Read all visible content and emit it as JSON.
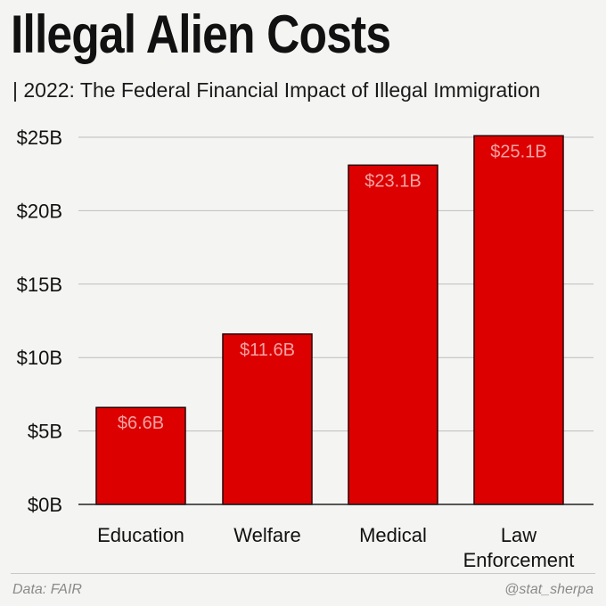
{
  "chart_data": {
    "type": "bar",
    "title": "Illegal Alien Costs",
    "subtitle": "| 2022: The Federal Financial Impact of Illegal Immigration",
    "categories": [
      [
        "Education"
      ],
      [
        "Welfare"
      ],
      [
        "Medical"
      ],
      [
        "Law",
        "Enforcement"
      ]
    ],
    "values": [
      6.6,
      11.6,
      23.1,
      25.1
    ],
    "value_labels": [
      "$6.6B",
      "$11.6B",
      "$23.1B",
      "$25.1B"
    ],
    "unit": "billion USD",
    "ylim": [
      0,
      25
    ],
    "yticks": [
      0,
      5,
      10,
      15,
      20,
      25
    ],
    "ytick_labels": [
      "$0B",
      "$5B",
      "$10B",
      "$15B",
      "$20B",
      "$25B"
    ],
    "xlabel": "",
    "ylabel": "",
    "grid": true,
    "legend": "none",
    "colors": {
      "bar": "#dd0000",
      "data_label": "#f4a3a3",
      "background": "#f4f4f2"
    }
  },
  "footer": {
    "source": "Data: FAIR",
    "handle": "@stat_sherpa"
  }
}
